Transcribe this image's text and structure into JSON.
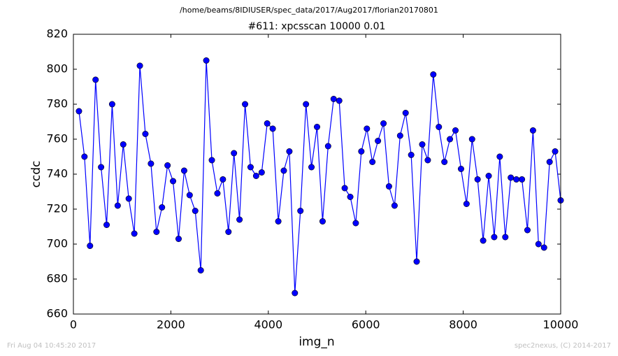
{
  "chart_data": {
    "type": "line",
    "suptitle": "/home/beams/8IDIUSER/spec_data/2017/Aug2017/florian20170801",
    "title": "#611: xpcsscan 10000 0.01",
    "xlabel": "img_n",
    "ylabel": "ccdc",
    "footer_left": "Fri Aug 04 10:45:20 2017",
    "footer_right": "spec2nexus, (C) 2014-2017",
    "x": [
      114,
      227,
      341,
      455,
      568,
      682,
      795,
      909,
      1023,
      1136,
      1250,
      1364,
      1477,
      1591,
      1705,
      1818,
      1932,
      2045,
      2159,
      2273,
      2386,
      2500,
      2614,
      2727,
      2841,
      2955,
      3068,
      3182,
      3295,
      3409,
      3523,
      3636,
      3750,
      3864,
      3977,
      4091,
      4205,
      4318,
      4432,
      4545,
      4659,
      4773,
      4886,
      5000,
      5114,
      5227,
      5341,
      5455,
      5568,
      5682,
      5795,
      5909,
      6023,
      6136,
      6250,
      6364,
      6477,
      6591,
      6705,
      6818,
      6932,
      7045,
      7159,
      7273,
      7386,
      7500,
      7614,
      7727,
      7841,
      7955,
      8068,
      8182,
      8295,
      8409,
      8523,
      8636,
      8750,
      8864,
      8977,
      9091,
      9205,
      9318,
      9432,
      9545,
      9659,
      9773,
      9886,
      10000
    ],
    "series": [
      {
        "name": "ccdc",
        "color": "#0000ff",
        "values": [
          776,
          750,
          699,
          794,
          744,
          711,
          780,
          722,
          757,
          726,
          706,
          802,
          763,
          746,
          707,
          721,
          745,
          736,
          703,
          742,
          728,
          719,
          685,
          805,
          748,
          729,
          737,
          707,
          752,
          714,
          780,
          744,
          739,
          741,
          769,
          766,
          713,
          742,
          753,
          672,
          719,
          780,
          744,
          767,
          713,
          756,
          783,
          782,
          732,
          727,
          712,
          753,
          766,
          747,
          759,
          769,
          733,
          722,
          762,
          775,
          751,
          690,
          757,
          748,
          797,
          767,
          747,
          760,
          765,
          743,
          723,
          760,
          737,
          702,
          739,
          704,
          750,
          704,
          738,
          737,
          737,
          708,
          765,
          700,
          698,
          747,
          753,
          725
        ]
      }
    ],
    "xlim": [
      0,
      10000
    ],
    "ylim": [
      660,
      820
    ],
    "xticks": [
      0,
      2000,
      4000,
      6000,
      8000,
      10000
    ],
    "yticks": [
      660,
      680,
      700,
      720,
      740,
      760,
      780,
      800,
      820
    ]
  }
}
